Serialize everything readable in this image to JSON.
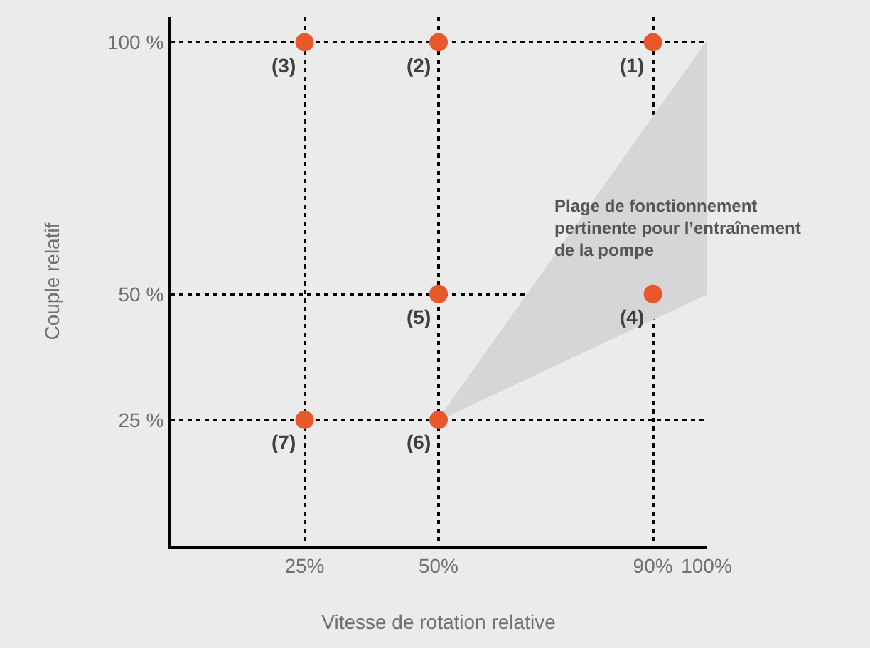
{
  "chart_data": {
    "type": "scatter",
    "xlabel": "Vitesse de rotation relative",
    "ylabel": "Couple relatif",
    "xlim": [
      0,
      100
    ],
    "ylim": [
      0,
      105
    ],
    "xticks": [
      {
        "value": 25,
        "label": "25%"
      },
      {
        "value": 50,
        "label": "50%"
      },
      {
        "value": 90,
        "label": "90%"
      },
      {
        "value": 100,
        "label": "100%"
      }
    ],
    "yticks": [
      {
        "value": 25,
        "label": "25 %"
      },
      {
        "value": 50,
        "label": "50 %"
      },
      {
        "value": 100,
        "label": "100 %"
      }
    ],
    "grid": true,
    "annotations": [
      "Plage de fonctionnement pertinente pour l’entraînement de la pompe",
      {
        "text": "(1)",
        "x": 90,
        "y": 100
      },
      {
        "text": "(2)",
        "x": 50,
        "y": 100
      },
      {
        "text": "(3)",
        "x": 25,
        "y": 100
      },
      {
        "text": "(4)",
        "x": 90,
        "y": 50
      },
      {
        "text": "(5)",
        "x": 50,
        "y": 50
      },
      {
        "text": "(6)",
        "x": 50,
        "y": 25
      },
      {
        "text": "(7)",
        "x": 25,
        "y": 25
      }
    ],
    "series": [
      {
        "type": "line",
        "color": "#d6d6d6",
        "x": [
          50,
          100
        ],
        "values": [
          null,
          null
        ],
        "lower": [
          25,
          50
        ],
        "upper": [
          25,
          100
        ]
      },
      {
        "color": "#e8582a",
        "marker": "circle",
        "x": [
          90,
          50,
          25,
          90,
          50,
          50,
          25
        ],
        "values": [
          100,
          100,
          100,
          50,
          50,
          25,
          25
        ]
      }
    ]
  }
}
